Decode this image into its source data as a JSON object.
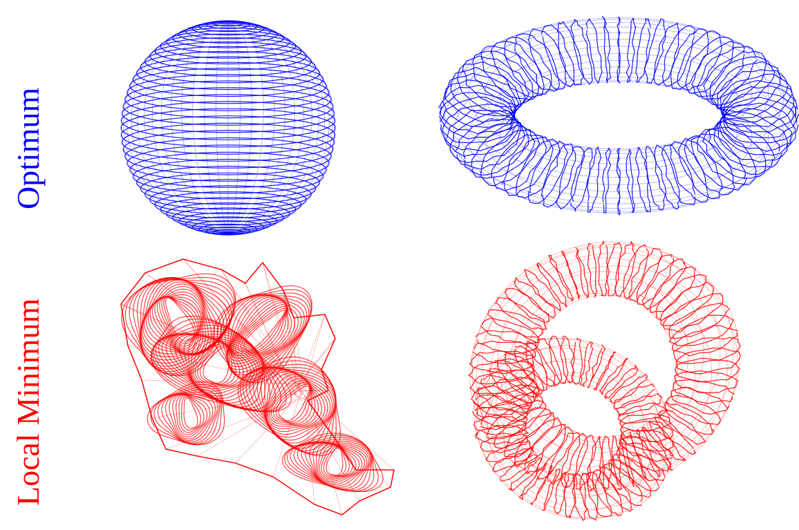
{
  "rows": [
    {
      "label": "Optimum",
      "color": "#0000ff"
    },
    {
      "label": "Local Minimum",
      "color": "#ff0000"
    }
  ],
  "panels": [
    {
      "name": "sphere",
      "row": "Optimum",
      "shape": "sphere wireframe"
    },
    {
      "name": "torus",
      "row": "Optimum",
      "shape": "torus wireframe"
    },
    {
      "name": "crumpled-surface",
      "row": "Local Minimum",
      "shape": "crumpled wireframe surface"
    },
    {
      "name": "linked-tori",
      "row": "Local Minimum",
      "shape": "self-intersecting torus wireframe"
    }
  ]
}
